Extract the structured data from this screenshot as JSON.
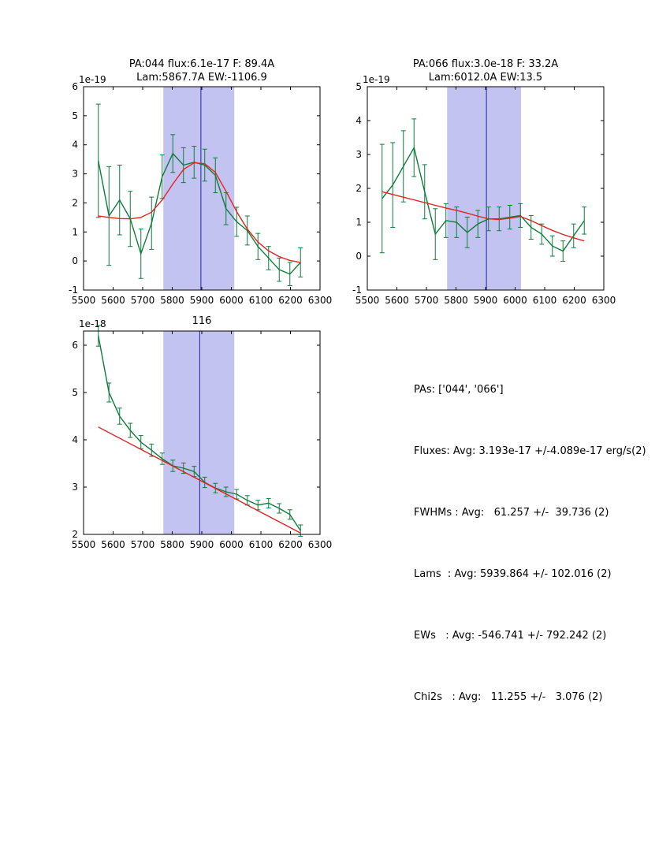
{
  "text_block": {
    "lines": [
      "PAs: ['044', '066']",
      "Fluxes: Avg: 3.193e-17 +/-4.089e-17 erg/s(2)",
      "FWHMs : Avg:   61.257 +/-  39.736 (2)",
      "Lams  : Avg: 5939.864 +/- 102.016 (2)",
      "EWs   : Avg: -546.741 +/- 792.242 (2)",
      "Chi2s   : Avg:   11.255 +/-   3.076 (2)"
    ]
  },
  "chart_data": [
    {
      "type": "line",
      "title_line1": "PA:044 flux:6.1e-17 F: 89.4A",
      "title_line2": "Lam:5867.7A EW:-1106.9",
      "offset_label": "1e-19",
      "xlabel": "",
      "ylabel": "",
      "xlim": [
        5500,
        6300
      ],
      "ylim": [
        -1,
        6
      ],
      "xticks": [
        5500,
        5600,
        5700,
        5800,
        5900,
        6000,
        6100,
        6200,
        6300
      ],
      "yticks": [
        -1,
        0,
        1,
        2,
        3,
        4,
        5,
        6
      ],
      "band": [
        5770,
        6010
      ],
      "vline": 5897,
      "colors": {
        "band": "#c3c3f1",
        "vline": "#2222aa"
      },
      "series": [
        {
          "name": "spectrum",
          "color": "#0e7c3a",
          "x": [
            5550,
            5586,
            5622,
            5658,
            5694,
            5730,
            5766,
            5802,
            5838,
            5874,
            5910,
            5946,
            5982,
            6018,
            6054,
            6090,
            6126,
            6162,
            6198,
            6234
          ],
          "y": [
            3.45,
            1.55,
            2.1,
            1.45,
            0.25,
            1.3,
            2.9,
            3.7,
            3.3,
            3.4,
            3.3,
            2.95,
            1.8,
            1.35,
            1.05,
            0.5,
            0.1,
            -0.3,
            -0.45,
            -0.05
          ],
          "yerr": [
            1.95,
            1.7,
            1.2,
            0.95,
            0.85,
            0.9,
            0.75,
            0.65,
            0.6,
            0.55,
            0.55,
            0.6,
            0.55,
            0.5,
            0.5,
            0.45,
            0.4,
            0.4,
            0.4,
            0.5
          ]
        },
        {
          "name": "fit",
          "color": "#e32222",
          "x": [
            5550,
            5586,
            5622,
            5658,
            5694,
            5730,
            5766,
            5802,
            5838,
            5874,
            5910,
            5946,
            5982,
            6018,
            6054,
            6090,
            6126,
            6162,
            6198,
            6234
          ],
          "y": [
            1.55,
            1.5,
            1.46,
            1.45,
            1.5,
            1.68,
            2.1,
            2.65,
            3.15,
            3.38,
            3.35,
            3.05,
            2.4,
            1.7,
            1.1,
            0.65,
            0.35,
            0.15,
            0.02,
            -0.05
          ]
        }
      ]
    },
    {
      "type": "line",
      "title_line1": "PA:066 flux:3.0e-18 F: 33.2A",
      "title_line2": "Lam:6012.0A EW:13.5",
      "offset_label": "1e-19",
      "xlabel": "",
      "ylabel": "",
      "xlim": [
        5500,
        6300
      ],
      "ylim": [
        -1,
        5
      ],
      "xticks": [
        5500,
        5600,
        5700,
        5800,
        5900,
        6000,
        6100,
        6200,
        6300
      ],
      "yticks": [
        -1,
        0,
        1,
        2,
        3,
        4,
        5
      ],
      "band": [
        5770,
        6020
      ],
      "vline": 5903,
      "colors": {
        "band": "#c3c3f1",
        "vline": "#2222aa"
      },
      "series": [
        {
          "name": "spectrum",
          "color": "#0e7c3a",
          "x": [
            5550,
            5586,
            5622,
            5658,
            5694,
            5730,
            5766,
            5802,
            5838,
            5874,
            5910,
            5946,
            5982,
            6018,
            6054,
            6090,
            6126,
            6162,
            6198,
            6234
          ],
          "y": [
            1.7,
            2.1,
            2.65,
            3.2,
            1.9,
            0.65,
            1.05,
            1.0,
            0.7,
            0.95,
            1.1,
            1.1,
            1.15,
            1.2,
            0.85,
            0.65,
            0.3,
            0.15,
            0.6,
            1.05
          ],
          "yerr": [
            1.6,
            1.25,
            1.05,
            0.85,
            0.8,
            0.75,
            0.5,
            0.45,
            0.45,
            0.4,
            0.35,
            0.35,
            0.35,
            0.35,
            0.35,
            0.3,
            0.3,
            0.3,
            0.35,
            0.4
          ]
        },
        {
          "name": "fit",
          "color": "#e32222",
          "x": [
            5550,
            5586,
            5622,
            5658,
            5694,
            5730,
            5766,
            5802,
            5838,
            5874,
            5910,
            5946,
            5982,
            6018,
            6054,
            6090,
            6126,
            6162,
            6198,
            6234
          ],
          "y": [
            1.9,
            1.82,
            1.74,
            1.66,
            1.58,
            1.5,
            1.42,
            1.35,
            1.27,
            1.18,
            1.1,
            1.08,
            1.12,
            1.17,
            1.05,
            0.9,
            0.76,
            0.64,
            0.54,
            0.45
          ]
        }
      ]
    },
    {
      "type": "line",
      "title_line1": "116",
      "title_line2": "",
      "offset_label": "1e-18",
      "xlabel": "",
      "ylabel": "",
      "xlim": [
        5500,
        6300
      ],
      "ylim": [
        2,
        6.3
      ],
      "xticks": [
        5500,
        5600,
        5700,
        5800,
        5900,
        6000,
        6100,
        6200,
        6300
      ],
      "yticks": [
        2,
        3,
        4,
        5,
        6
      ],
      "band": [
        5770,
        6010
      ],
      "vline": 5893,
      "colors": {
        "band": "#c3c3f1",
        "vline": "#2222aa"
      },
      "series": [
        {
          "name": "spectrum",
          "color": "#0e7c3a",
          "x": [
            5550,
            5586,
            5622,
            5658,
            5694,
            5730,
            5766,
            5802,
            5838,
            5874,
            5910,
            5946,
            5982,
            6018,
            6054,
            6090,
            6126,
            6162,
            6198,
            6234
          ],
          "y": [
            6.2,
            5.0,
            4.5,
            4.2,
            3.95,
            3.78,
            3.6,
            3.45,
            3.4,
            3.33,
            3.1,
            2.98,
            2.9,
            2.85,
            2.72,
            2.62,
            2.66,
            2.55,
            2.42,
            2.08
          ],
          "yerr": [
            0.22,
            0.2,
            0.17,
            0.15,
            0.14,
            0.13,
            0.12,
            0.12,
            0.11,
            0.11,
            0.11,
            0.1,
            0.1,
            0.1,
            0.1,
            0.1,
            0.1,
            0.1,
            0.1,
            0.12
          ]
        },
        {
          "name": "fit",
          "color": "#e32222",
          "x": [
            5550,
            6234
          ],
          "y": [
            4.27,
            2.03
          ]
        }
      ]
    }
  ]
}
